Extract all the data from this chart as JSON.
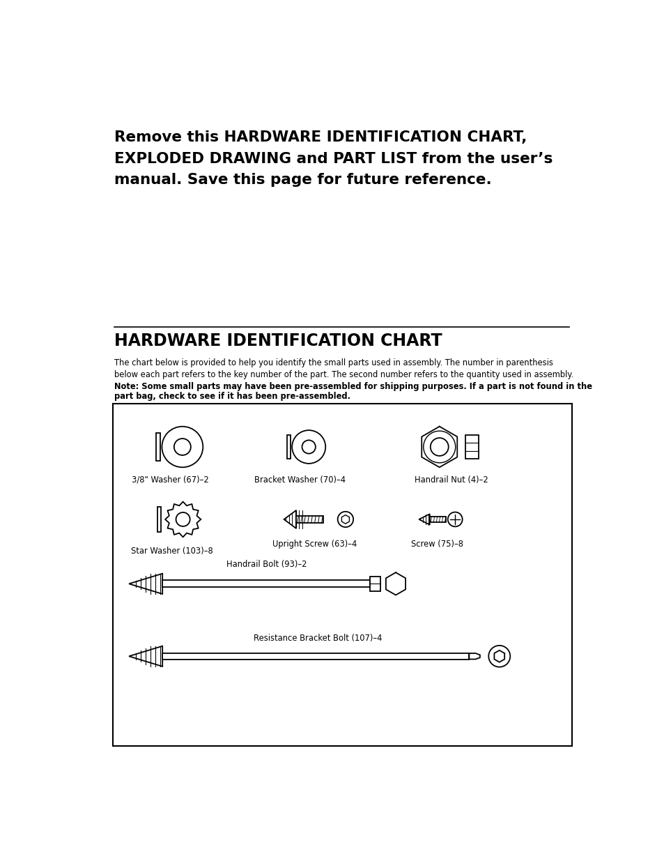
{
  "bg_color": "#ffffff",
  "page_width": 9.54,
  "page_height": 12.35,
  "top_text_line1": "Remove this HARDWARE IDENTIFICATION CHART,",
  "top_text_line2": "EXPLODED DRAWING and PART LIST from the user’s",
  "top_text_line3": "manual. Save this page for future reference.",
  "section_title": "HARDWARE IDENTIFICATION CHART",
  "desc1": "The chart below is provided to help you identify the small parts used in assembly. The number in parenthesis",
  "desc2": "below each part refers to the key number of the part. The second number refers to the quantity used in assembly.",
  "desc_bold": "Note: Some small parts may have been pre-assembled for shipping purposes. If a part is not found in the",
  "desc_bold2": "part bag, check to see if it has been pre-assembled.",
  "label_washer": "3/8\" Washer (67)–2",
  "label_bracket_washer": "Bracket Washer (70)–4",
  "label_handrail_nut": "Handrail Nut (4)–2",
  "label_star_washer": "Star Washer (103)–8",
  "label_upright_screw": "Upright Screw (63)–4",
  "label_screw": "Screw (75)–8",
  "label_handrail_bolt": "Handrail Bolt (93)–2",
  "label_bracket_bolt": "Resistance Bracket Bolt (107)–4"
}
